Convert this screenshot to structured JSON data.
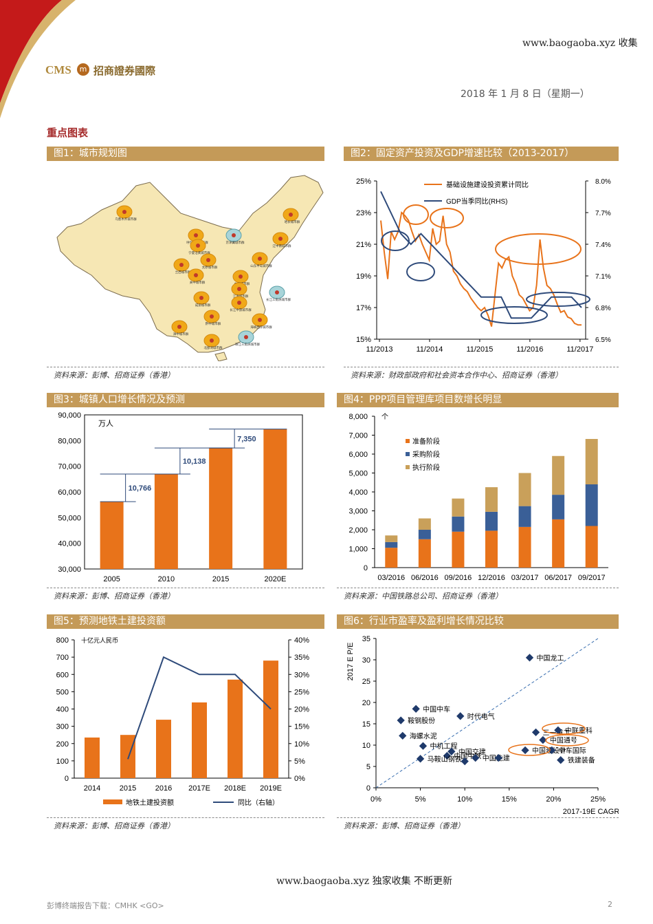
{
  "header": {
    "site": "www.baogaoba.xyz 收集",
    "logo_cms": "CMS",
    "logo_badge": "m",
    "logo_name": "招商證券國際",
    "date": "2018 年 1 月 8 日（星期一）"
  },
  "section_title": "重点图表",
  "figures": {
    "fig1": {
      "title": "图1：城市规划图",
      "source": "资料来源：彭博、招商证券（香港）"
    },
    "fig2": {
      "title": "图2：固定资产投资及GDP增速比较（2013-2017）",
      "source": "资料来源：财政部政府和社会资本合作中心、招商证券（香港）"
    },
    "fig3": {
      "title": "图3：城镇人口增长情况及预测",
      "source": "资料来源：彭博、招商证券（香港）"
    },
    "fig4": {
      "title": "图4：PPP项目管理库项目数增长明显",
      "source": "资料来源：中国铁路总公司、招商证券（香港）"
    },
    "fig5": {
      "title": "图5：预测地铁土建投资额",
      "source": "资料来源：彭博、招商证券（香港）"
    },
    "fig6": {
      "title": "图6：行业市盈率及盈利增长情况比较",
      "source": "资料来源：彭博、招商证券（香港）"
    }
  },
  "map": {
    "clusters": [
      "乌鲁木齐城市群",
      "呼包鄂榆城市群",
      "京津冀城市群",
      "哈长城市群",
      "辽中南城市群",
      "宁夏沿黄城市群",
      "太原城市群",
      "山东半岛城市群",
      "兰西城市群",
      "关中城市群",
      "中原城市群",
      "江淮城市群",
      "长江三角洲城市群",
      "成渝城市群",
      "长江中游城市群",
      "黔中城市群",
      "海峡西岸城市群",
      "滇中城市群",
      "北部湾城市群",
      "珠江三角洲城市群"
    ]
  },
  "chart_data": [
    {
      "id": "fig2",
      "type": "line",
      "x_ticks": [
        "11/2013",
        "11/2014",
        "11/2015",
        "11/2016",
        "11/2017"
      ],
      "y_ticks_left": [
        "15%",
        "17%",
        "19%",
        "21%",
        "23%",
        "25%"
      ],
      "y_ticks_right": [
        "6.5%",
        "6.8%",
        "7.1%",
        "7.4%",
        "7.7%",
        "8.0%"
      ],
      "ylim_left": [
        15,
        25
      ],
      "ylim_right": [
        6.5,
        8.0
      ],
      "series": [
        {
          "name": "基础设施建设投资累计同比",
          "color": "#e8731a",
          "axis": "left",
          "values": [
            22.5,
            20.5,
            18.8,
            21.8,
            21.3,
            21.8,
            23.0,
            22.8,
            22.5,
            21.8,
            21.2,
            21.6,
            21.0,
            20.5,
            20.0,
            22.0,
            21.0,
            21.2,
            22.8,
            21.0,
            20.5,
            19.3,
            19.0,
            18.5,
            18.2,
            18.0,
            17.6,
            17.3,
            17.0,
            16.8,
            17.0,
            16.5,
            15.8,
            17.8,
            19.8,
            19.5,
            20.0,
            20.2,
            19.0,
            18.5,
            17.8,
            17.6,
            17.2,
            16.8,
            17.0,
            18.4,
            21.3,
            19.5,
            18.4,
            18.2,
            17.8,
            17.2,
            16.7,
            16.8,
            16.4,
            16.3,
            16.0,
            15.9,
            15.9
          ]
        },
        {
          "name": "GDP当季同比(RHS)",
          "color": "#2e4a7a",
          "axis": "right",
          "values": [
            7.9,
            7.7,
            7.5,
            7.4,
            7.5,
            7.4,
            7.3,
            7.2,
            7.1,
            7.0,
            6.9,
            6.9,
            6.9,
            6.7,
            6.7,
            6.7,
            6.8,
            6.9,
            6.9,
            6.9,
            6.8
          ]
        }
      ]
    },
    {
      "id": "fig3",
      "type": "bar",
      "unit": "万人",
      "categories": [
        "2005",
        "2010",
        "2015",
        "2020E"
      ],
      "values": [
        56212,
        66978,
        77116,
        84466
      ],
      "ylim": [
        30000,
        90000
      ],
      "y_ticks": [
        "30,000",
        "40,000",
        "50,000",
        "60,000",
        "70,000",
        "80,000",
        "90,000"
      ],
      "annotations": [
        "10,766",
        "10,138",
        "7,350"
      ],
      "color": "#e8731a"
    },
    {
      "id": "fig4",
      "type": "bar",
      "unit": "个",
      "categories": [
        "03/2016",
        "06/2016",
        "09/2016",
        "12/2016",
        "03/2017",
        "06/2017",
        "09/2017"
      ],
      "ylim": [
        0,
        8000
      ],
      "y_ticks": [
        "0",
        "1,000",
        "2,000",
        "3,000",
        "4,000",
        "5,000",
        "6,000",
        "7,000",
        "8,000"
      ],
      "series": [
        {
          "name": "准备阶段",
          "color": "#e8731a",
          "values": [
            1050,
            1500,
            1900,
            1950,
            2150,
            2550,
            2200
          ]
        },
        {
          "name": "采购阶段",
          "color": "#3a5f97",
          "values": [
            300,
            500,
            800,
            1000,
            1100,
            1300,
            2200
          ]
        },
        {
          "name": "执行阶段",
          "color": "#c9a05a",
          "values": [
            350,
            600,
            950,
            1300,
            1750,
            2050,
            2400
          ]
        }
      ]
    },
    {
      "id": "fig5",
      "type": "bar",
      "unit": "十亿元人民币",
      "categories": [
        "2014",
        "2015",
        "2016",
        "2017E",
        "2018E",
        "2019E"
      ],
      "ylim": [
        0,
        800
      ],
      "ylim_right": [
        0,
        40
      ],
      "y_ticks": [
        "0",
        "100",
        "200",
        "300",
        "400",
        "500",
        "600",
        "700",
        "800"
      ],
      "y_ticks_right": [
        "0%",
        "5%",
        "10%",
        "15%",
        "20%",
        "25%",
        "30%",
        "35%",
        "40%"
      ],
      "series": [
        {
          "name": "地铁土建投资额",
          "color": "#e8731a",
          "values": [
            235,
            250,
            338,
            438,
            570,
            680
          ]
        },
        {
          "name": "同比（右轴）",
          "color": "#2e4a7a",
          "axis": "right",
          "values": [
            null,
            5.5,
            35,
            30,
            30,
            20
          ]
        }
      ]
    },
    {
      "id": "fig6",
      "type": "scatter",
      "xlabel": "2017-19E CAGR",
      "ylabel": "2017 E P/E",
      "xlim": [
        0,
        25
      ],
      "ylim": [
        0,
        35
      ],
      "x_ticks": [
        "0%",
        "5%",
        "10%",
        "15%",
        "20%",
        "25%"
      ],
      "y_ticks": [
        "0",
        "5",
        "10",
        "15",
        "20",
        "25",
        "30",
        "35"
      ],
      "points": [
        {
          "label": "中国龙工",
          "x": 17.3,
          "y": 30.5
        },
        {
          "label": "中国中车",
          "x": 4.5,
          "y": 18.5
        },
        {
          "label": "时代电气",
          "x": 9.5,
          "y": 16.8
        },
        {
          "label": "海螺水泥",
          "x": 3.0,
          "y": 12.2
        },
        {
          "label": "三一重工",
          "x": 18.0,
          "y": 13.0
        },
        {
          "label": "中联重科",
          "x": 20.5,
          "y": 13.5
        },
        {
          "label": "中国通号",
          "x": 18.8,
          "y": 11.2
        },
        {
          "label": "中机工程",
          "x": 5.3,
          "y": 9.8
        },
        {
          "label": "鞍钢股份",
          "x": 2.8,
          "y": 15.8
        },
        {
          "label": "中国交建",
          "x": 8.5,
          "y": 8.5
        },
        {
          "label": "中国建设计",
          "x": 16.8,
          "y": 8.8
        },
        {
          "label": "中国中铁",
          "x": 8.0,
          "y": 7.5
        },
        {
          "label": "中车国际",
          "x": 19.8,
          "y": 8.8
        },
        {
          "label": "中国能建",
          "x": 11.2,
          "y": 7.0
        },
        {
          "label": "马鞍山钢铁",
          "x": 5.0,
          "y": 6.8
        },
        {
          "label": "铁建装备",
          "x": 20.8,
          "y": 6.5
        },
        {
          "label": "",
          "x": 10.0,
          "y": 6.2
        },
        {
          "label": "",
          "x": 13.8,
          "y": 7.0
        }
      ]
    }
  ],
  "footer": {
    "left": "彭博终端报告下载：CMHK <GO>",
    "center": "www.baogaoba.xyz  独家收集  不断更新",
    "page": "2"
  }
}
